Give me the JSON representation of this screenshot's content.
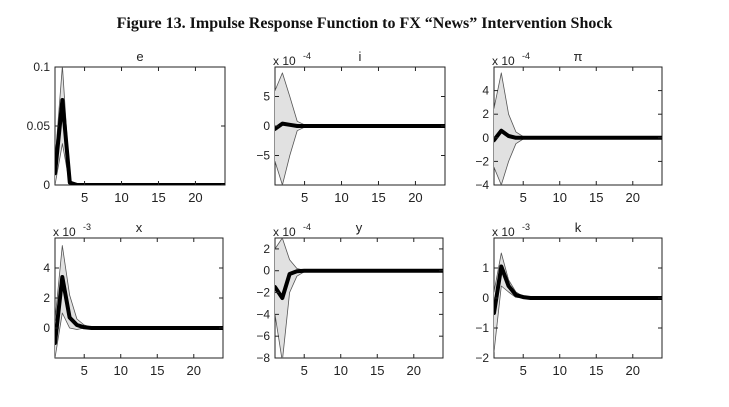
{
  "figure": {
    "title": "Figure 13. Impulse Response Function to FX “News” Intervention Shock"
  },
  "chart_data": [
    {
      "type": "line",
      "title": "e",
      "exponent_label": "",
      "x": [
        1,
        2,
        3,
        4,
        5,
        6,
        7,
        8,
        9,
        10,
        11,
        12,
        13,
        14,
        15,
        16,
        17,
        18,
        19,
        20,
        21,
        22,
        23,
        24
      ],
      "xlim": [
        1,
        24
      ],
      "ylim": [
        0,
        0.1
      ],
      "xticks": [
        5,
        10,
        15,
        20
      ],
      "yticks": [
        0,
        0.05,
        0.1
      ],
      "ytick_labels": [
        "0",
        "0.05",
        "0.1"
      ],
      "grid": false,
      "series": [
        {
          "role": "median",
          "values": [
            0.01,
            0.072,
            0.002,
            0,
            0,
            0,
            0,
            0,
            0,
            0,
            0,
            0,
            0,
            0,
            0,
            0,
            0,
            0,
            0,
            0,
            0,
            0,
            0,
            0
          ]
        },
        {
          "role": "upper",
          "values": [
            0.02,
            0.101,
            0.004,
            0,
            0,
            0,
            0,
            0,
            0,
            0,
            0,
            0,
            0,
            0,
            0,
            0,
            0,
            0,
            0,
            0,
            0,
            0,
            0,
            0
          ]
        },
        {
          "role": "lower",
          "values": [
            0.0,
            0.035,
            0.0,
            0,
            0,
            0,
            0,
            0,
            0,
            0,
            0,
            0,
            0,
            0,
            0,
            0,
            0,
            0,
            0,
            0,
            0,
            0,
            0,
            0
          ]
        }
      ]
    },
    {
      "type": "line",
      "title": "i",
      "exponent_label": "x 10",
      "exponent_power": "-4",
      "x": [
        1,
        2,
        3,
        4,
        5,
        6,
        7,
        8,
        9,
        10,
        11,
        12,
        13,
        14,
        15,
        16,
        17,
        18,
        19,
        20,
        21,
        22,
        23,
        24
      ],
      "xlim": [
        1,
        24
      ],
      "ylim": [
        -10,
        10
      ],
      "xticks": [
        5,
        10,
        15,
        20
      ],
      "yticks": [
        -5,
        0,
        5
      ],
      "ytick_labels": [
        "−5",
        "0",
        "5"
      ],
      "grid": false,
      "series": [
        {
          "role": "median",
          "values": [
            -0.5,
            0.4,
            0.2,
            0,
            0,
            0,
            0,
            0,
            0,
            0,
            0,
            0,
            0,
            0,
            0,
            0,
            0,
            0,
            0,
            0,
            0,
            0,
            0,
            0
          ]
        },
        {
          "role": "upper",
          "values": [
            6,
            9,
            5,
            0.8,
            0.2,
            0.1,
            0,
            0,
            0,
            0,
            0,
            0,
            0,
            0,
            0,
            0,
            0,
            0,
            0,
            0,
            0,
            0,
            0,
            0
          ]
        },
        {
          "role": "lower",
          "values": [
            -6,
            -10,
            -5,
            -0.8,
            -0.2,
            -0.1,
            0,
            0,
            0,
            0,
            0,
            0,
            0,
            0,
            0,
            0,
            0,
            0,
            0,
            0,
            0,
            0,
            0,
            0
          ]
        }
      ]
    },
    {
      "type": "line",
      "title": "π",
      "exponent_label": "x 10",
      "exponent_power": "-4",
      "x": [
        1,
        2,
        3,
        4,
        5,
        6,
        7,
        8,
        9,
        10,
        11,
        12,
        13,
        14,
        15,
        16,
        17,
        18,
        19,
        20,
        21,
        22,
        23,
        24
      ],
      "xlim": [
        1,
        24
      ],
      "ylim": [
        -4,
        6
      ],
      "xticks": [
        5,
        10,
        15,
        20
      ],
      "yticks": [
        -4,
        -2,
        0,
        2,
        4
      ],
      "ytick_labels": [
        "−4",
        "−2",
        "0",
        "2",
        "4"
      ],
      "grid": false,
      "series": [
        {
          "role": "median",
          "values": [
            -0.2,
            0.6,
            0.15,
            0,
            0,
            0,
            0,
            0,
            0,
            0,
            0,
            0,
            0,
            0,
            0,
            0,
            0,
            0,
            0,
            0,
            0,
            0,
            0,
            0
          ]
        },
        {
          "role": "upper",
          "values": [
            2.5,
            5.5,
            2,
            0.5,
            0.1,
            0,
            0,
            0,
            0,
            0,
            0,
            0,
            0,
            0,
            0,
            0,
            0,
            0,
            0,
            0,
            0,
            0,
            0,
            0
          ]
        },
        {
          "role": "lower",
          "values": [
            -2.5,
            -4,
            -2,
            -0.5,
            -0.1,
            0,
            0,
            0,
            0,
            0,
            0,
            0,
            0,
            0,
            0,
            0,
            0,
            0,
            0,
            0,
            0,
            0,
            0,
            0
          ]
        }
      ]
    },
    {
      "type": "line",
      "title": "x",
      "exponent_label": "x 10",
      "exponent_power": "-3",
      "x": [
        1,
        2,
        3,
        4,
        5,
        6,
        7,
        8,
        9,
        10,
        11,
        12,
        13,
        14,
        15,
        16,
        17,
        18,
        19,
        20,
        21,
        22,
        23,
        24
      ],
      "xlim": [
        1,
        24
      ],
      "ylim": [
        -2,
        6
      ],
      "xticks": [
        5,
        10,
        15,
        20
      ],
      "yticks": [
        0,
        2,
        4
      ],
      "ytick_labels": [
        "0",
        "2",
        "4"
      ],
      "grid": false,
      "series": [
        {
          "role": "median",
          "values": [
            -1,
            3.4,
            0.7,
            0.2,
            0.05,
            0,
            0,
            0,
            0,
            0,
            0,
            0,
            0,
            0,
            0,
            0,
            0,
            0,
            0,
            0,
            0,
            0,
            0,
            0
          ]
        },
        {
          "role": "upper",
          "values": [
            0.5,
            5.5,
            2.2,
            0.6,
            0.2,
            0.05,
            0,
            0,
            0,
            0,
            0,
            0,
            0,
            0,
            0,
            0,
            0,
            0,
            0,
            0,
            0,
            0,
            0,
            0
          ]
        },
        {
          "role": "lower",
          "values": [
            -2,
            1.0,
            0,
            -0.1,
            0,
            0,
            0,
            0,
            0,
            0,
            0,
            0,
            0,
            0,
            0,
            0,
            0,
            0,
            0,
            0,
            0,
            0,
            0,
            0
          ]
        }
      ]
    },
    {
      "type": "line",
      "title": "y",
      "exponent_label": "x 10",
      "exponent_power": "-4",
      "x": [
        1,
        2,
        3,
        4,
        5,
        6,
        7,
        8,
        9,
        10,
        11,
        12,
        13,
        14,
        15,
        16,
        17,
        18,
        19,
        20,
        21,
        22,
        23,
        24
      ],
      "xlim": [
        1,
        24
      ],
      "ylim": [
        -8,
        3
      ],
      "xticks": [
        5,
        10,
        15,
        20
      ],
      "yticks": [
        -8,
        -6,
        -4,
        -2,
        0,
        2
      ],
      "ytick_labels": [
        "−8",
        "−6",
        "−4",
        "−2",
        "0",
        "2"
      ],
      "grid": false,
      "series": [
        {
          "role": "median",
          "values": [
            -1.5,
            -2.5,
            -0.3,
            -0.05,
            0,
            0,
            0,
            0,
            0,
            0,
            0,
            0,
            0,
            0,
            0,
            0,
            0,
            0,
            0,
            0,
            0,
            0,
            0,
            0
          ]
        },
        {
          "role": "upper",
          "values": [
            2,
            3,
            1,
            0.2,
            0.05,
            0,
            0,
            0,
            0,
            0,
            0,
            0,
            0,
            0,
            0,
            0,
            0,
            0,
            0,
            0,
            0,
            0,
            0,
            0
          ]
        },
        {
          "role": "lower",
          "values": [
            -4,
            -8.3,
            -2,
            -0.5,
            -0.1,
            0,
            0,
            0,
            0,
            0,
            0,
            0,
            0,
            0,
            0,
            0,
            0,
            0,
            0,
            0,
            0,
            0,
            0,
            0
          ]
        }
      ]
    },
    {
      "type": "line",
      "title": "k",
      "exponent_label": "x 10",
      "exponent_power": "-3",
      "x": [
        1,
        2,
        3,
        4,
        5,
        6,
        7,
        8,
        9,
        10,
        11,
        12,
        13,
        14,
        15,
        16,
        17,
        18,
        19,
        20,
        21,
        22,
        23,
        24
      ],
      "xlim": [
        1,
        24
      ],
      "ylim": [
        -2,
        2
      ],
      "xticks": [
        5,
        10,
        15,
        20
      ],
      "yticks": [
        -2,
        -1,
        0,
        1
      ],
      "ytick_labels": [
        "−2",
        "−1",
        "0",
        "1"
      ],
      "grid": false,
      "series": [
        {
          "role": "median",
          "values": [
            -0.5,
            1.05,
            0.4,
            0.1,
            0.03,
            0,
            0,
            0,
            0,
            0,
            0,
            0,
            0,
            0,
            0,
            0,
            0,
            0,
            0,
            0,
            0,
            0,
            0,
            0
          ]
        },
        {
          "role": "upper",
          "values": [
            0.2,
            1.5,
            0.6,
            0.2,
            0.05,
            0.02,
            0,
            0,
            0,
            0,
            0,
            0,
            0,
            0,
            0,
            0,
            0,
            0,
            0,
            0,
            0,
            0,
            0,
            0
          ]
        },
        {
          "role": "lower",
          "values": [
            -1.8,
            0.4,
            0.2,
            0.02,
            0,
            0,
            0,
            0,
            0,
            0,
            0,
            0,
            0,
            0,
            0,
            0,
            0,
            0,
            0,
            0,
            0,
            0,
            0,
            0
          ]
        }
      ]
    }
  ],
  "colors": {
    "band_fill": "#e1e1e1",
    "band_edge": "#555555",
    "median_line": "#000000",
    "axes": "#222222"
  }
}
